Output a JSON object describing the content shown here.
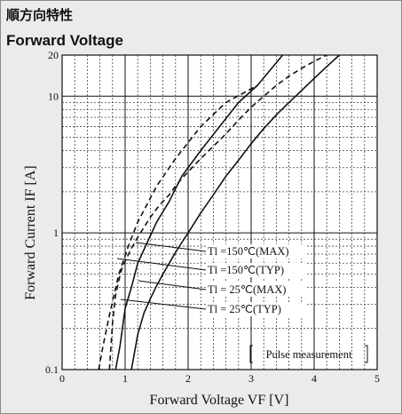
{
  "title_jp": "順方向特性",
  "title_en": "Forward Voltage",
  "chart_data": {
    "type": "line",
    "xlabel": "Forward Voltage  VF [V]",
    "ylabel": "Forward Current  IF [A]",
    "xlim": [
      0,
      5
    ],
    "ylim": [
      0.1,
      20
    ],
    "yscale": "log",
    "grid": true,
    "xticks": [
      "0",
      "1",
      "2",
      "3",
      "4",
      "5"
    ],
    "yticks": [
      "0.1",
      "1",
      "10",
      "20"
    ],
    "note": "Pulse measurement",
    "series": [
      {
        "name": "Tl =150℃(MAX)",
        "style": "dashed",
        "x": [
          0.58,
          0.65,
          0.75,
          0.9,
          1.05,
          1.2,
          1.5,
          1.8,
          2.2,
          2.6,
          3.1
        ],
        "y": [
          0.1,
          0.15,
          0.25,
          0.5,
          0.8,
          1.2,
          2.2,
          3.5,
          6,
          9,
          12
        ]
      },
      {
        "name": "Tl =150℃(TYP)",
        "style": "dashed",
        "x": [
          0.75,
          0.8,
          0.85,
          0.9,
          0.95,
          1.0,
          1.1,
          1.2,
          1.3,
          1.4,
          1.5,
          1.6,
          1.7,
          1.8,
          1.9,
          2.0,
          2.2,
          2.4,
          2.6,
          2.8,
          3.0,
          3.2,
          3.4,
          3.6,
          3.8,
          4.0,
          4.2
        ],
        "y": [
          0.1,
          0.22,
          0.35,
          0.45,
          0.55,
          0.62,
          0.77,
          0.93,
          1.1,
          1.3,
          1.5,
          1.7,
          1.9,
          2.2,
          2.5,
          2.8,
          3.5,
          4.3,
          5.3,
          6.7,
          8.3,
          10.0,
          12.0,
          14.0,
          16.0,
          18.0,
          20.0
        ]
      },
      {
        "name": "Tl = 25℃(MAX)",
        "style": "solid",
        "x": [
          0.85,
          0.92,
          1.0,
          1.1,
          1.2,
          1.35,
          1.5,
          1.7,
          1.9,
          2.2,
          2.5,
          2.8,
          3.1,
          3.5
        ],
        "y": [
          0.1,
          0.15,
          0.28,
          0.4,
          0.6,
          0.85,
          1.2,
          1.7,
          2.6,
          4.0,
          6.0,
          9.0,
          12.0,
          20.0
        ]
      },
      {
        "name": "Tl = 25℃(TYP)",
        "style": "solid",
        "x": [
          1.1,
          1.2,
          1.3,
          1.4,
          1.5,
          1.6,
          1.7,
          1.8,
          1.9,
          2.0,
          2.2,
          2.4,
          2.6,
          2.8,
          3.0,
          3.2,
          3.4,
          3.6,
          3.8,
          4.0,
          4.2,
          4.4
        ],
        "y": [
          0.1,
          0.18,
          0.26,
          0.33,
          0.41,
          0.5,
          0.6,
          0.72,
          0.85,
          1.0,
          1.4,
          1.9,
          2.6,
          3.4,
          4.5,
          5.8,
          7.3,
          9.0,
          11.0,
          13.5,
          16.5,
          20.0
        ]
      }
    ]
  }
}
